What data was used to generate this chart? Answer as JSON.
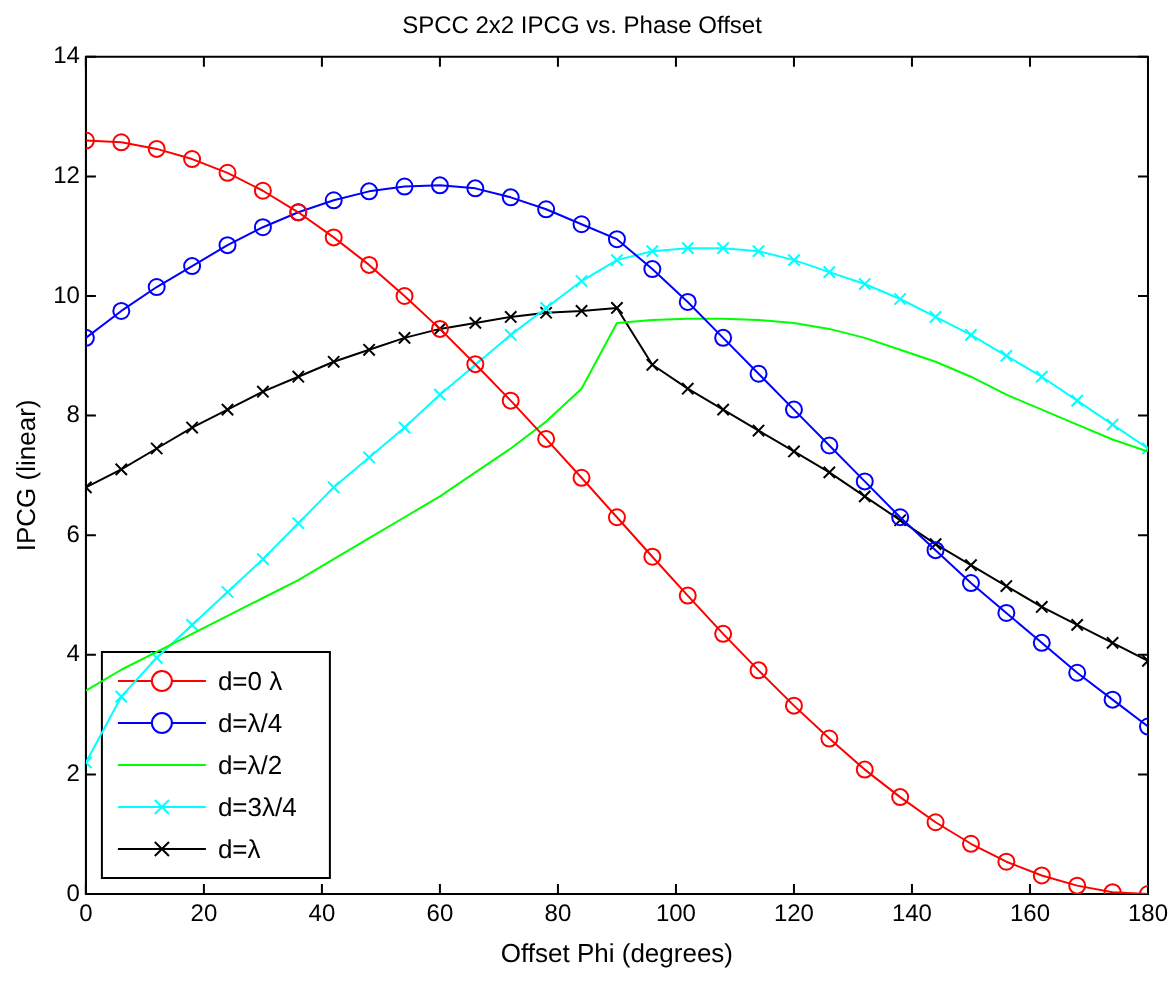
{
  "chart_data": {
    "type": "line",
    "title": "SPCC 2x2 IPCG vs. Phase Offset",
    "xlabel": "Offset Phi (degrees)",
    "ylabel": "IPCG (linear)",
    "x": [
      0,
      6,
      12,
      18,
      24,
      30,
      36,
      42,
      48,
      54,
      60,
      66,
      72,
      78,
      84,
      90,
      96,
      102,
      108,
      114,
      120,
      126,
      132,
      138,
      144,
      150,
      156,
      162,
      168,
      174,
      180
    ],
    "xlim": [
      0,
      180
    ],
    "xticks": [
      0,
      20,
      40,
      60,
      80,
      100,
      120,
      140,
      160,
      180
    ],
    "ylim": [
      0,
      14
    ],
    "yticks": [
      0,
      2,
      4,
      6,
      8,
      10,
      12,
      14
    ],
    "grid": false,
    "legend": "bottom left",
    "line_style": "solid",
    "series": [
      {
        "name": "d=0 λ",
        "color": "#ff0000",
        "marker": "circle",
        "values": [
          12.6,
          12.57,
          12.46,
          12.29,
          12.06,
          11.76,
          11.4,
          10.98,
          10.52,
          10.0,
          9.45,
          8.86,
          8.25,
          7.61,
          6.96,
          6.3,
          5.64,
          4.99,
          4.35,
          3.74,
          3.15,
          2.6,
          2.08,
          1.62,
          1.2,
          0.84,
          0.54,
          0.31,
          0.14,
          0.03,
          0
        ]
      },
      {
        "name": "d=λ/4",
        "color": "#0000ff",
        "marker": "circle",
        "values": [
          9.3,
          9.75,
          10.15,
          10.5,
          10.85,
          11.15,
          11.4,
          11.6,
          11.75,
          11.83,
          11.85,
          11.8,
          11.65,
          11.45,
          11.2,
          10.95,
          10.45,
          9.9,
          9.3,
          8.7,
          8.1,
          7.5,
          6.9,
          6.3,
          5.75,
          5.2,
          4.7,
          4.2,
          3.7,
          3.25,
          2.8
        ]
      },
      {
        "name": "d=λ/2",
        "color": "#00ff00",
        "marker": "none",
        "values": [
          3.4,
          3.75,
          4.05,
          4.35,
          4.65,
          4.95,
          5.25,
          5.6,
          5.95,
          6.3,
          6.65,
          7.05,
          7.45,
          7.9,
          8.45,
          9.55,
          9.6,
          9.62,
          9.62,
          9.6,
          9.55,
          9.45,
          9.3,
          9.1,
          8.9,
          8.65,
          8.35,
          8.1,
          7.85,
          7.6,
          7.4
        ]
      },
      {
        "name": "d=3λ/4",
        "color": "#00ffff",
        "marker": "cross",
        "values": [
          2.2,
          3.3,
          3.95,
          4.5,
          5.05,
          5.6,
          6.2,
          6.8,
          7.3,
          7.8,
          8.35,
          8.85,
          9.35,
          9.8,
          10.25,
          10.6,
          10.75,
          10.8,
          10.8,
          10.75,
          10.6,
          10.4,
          10.2,
          9.95,
          9.65,
          9.35,
          9.0,
          8.65,
          8.25,
          7.85,
          7.45
        ]
      },
      {
        "name": "d=λ",
        "color": "#000000",
        "marker": "cross",
        "values": [
          6.8,
          7.1,
          7.45,
          7.8,
          8.1,
          8.4,
          8.65,
          8.9,
          9.1,
          9.3,
          9.45,
          9.55,
          9.65,
          9.72,
          9.75,
          9.8,
          8.85,
          8.45,
          8.1,
          7.75,
          7.4,
          7.05,
          6.65,
          6.25,
          5.85,
          5.5,
          5.15,
          4.8,
          4.5,
          4.2,
          3.9
        ]
      }
    ]
  }
}
